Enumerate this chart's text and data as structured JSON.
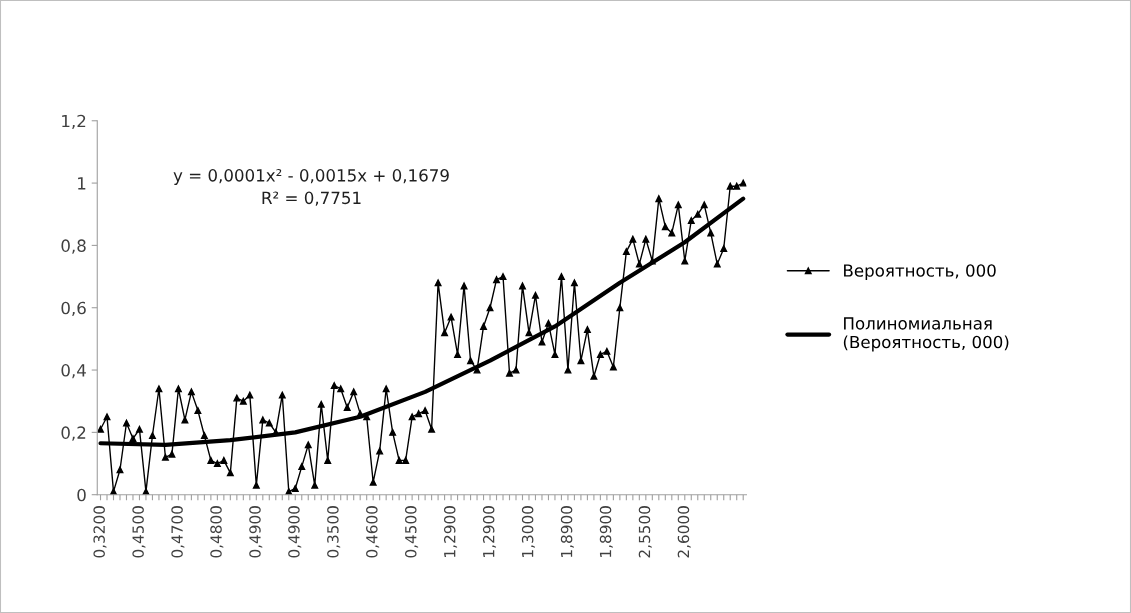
{
  "chart_data": {
    "type": "line",
    "categories": [
      "0,3200",
      null,
      null,
      null,
      null,
      null,
      "0,4500",
      null,
      null,
      null,
      null,
      null,
      "0,4700",
      null,
      null,
      null,
      null,
      null,
      "0,4800",
      null,
      null,
      null,
      null,
      null,
      "0,4900",
      null,
      null,
      null,
      null,
      null,
      "0,4900",
      null,
      null,
      null,
      null,
      null,
      "0,3500",
      null,
      null,
      null,
      null,
      null,
      "0,4600",
      null,
      null,
      null,
      null,
      null,
      "0,4500",
      null,
      null,
      null,
      null,
      null,
      "1,2900",
      null,
      null,
      null,
      null,
      null,
      "1,2900",
      null,
      null,
      null,
      null,
      null,
      "1,3000",
      null,
      null,
      null,
      null,
      null,
      "1,8900",
      null,
      null,
      null,
      null,
      null,
      "1,8900",
      null,
      null,
      null,
      null,
      null,
      "2,5500",
      null,
      null,
      null,
      null,
      null,
      "2,6000",
      null,
      null,
      null,
      null,
      null,
      null,
      null,
      null,
      null
    ],
    "series": [
      {
        "name": "Вероятность, 000",
        "color": "#000000",
        "marker": "triangle",
        "values": [
          0.21,
          0.25,
          0.01,
          0.08,
          0.23,
          0.18,
          0.21,
          0.01,
          0.19,
          0.34,
          0.12,
          0.13,
          0.34,
          0.24,
          0.33,
          0.27,
          0.19,
          0.11,
          0.1,
          0.11,
          0.07,
          0.31,
          0.3,
          0.32,
          0.03,
          0.24,
          0.23,
          0.2,
          0.32,
          0.01,
          0.02,
          0.09,
          0.16,
          0.03,
          0.29,
          0.11,
          0.35,
          0.34,
          0.28,
          0.33,
          0.26,
          0.25,
          0.04,
          0.14,
          0.34,
          0.2,
          0.11,
          0.11,
          0.25,
          0.26,
          0.27,
          0.21,
          0.68,
          0.52,
          0.57,
          0.45,
          0.67,
          0.43,
          0.4,
          0.54,
          0.6,
          0.69,
          0.7,
          0.39,
          0.4,
          0.67,
          0.52,
          0.64,
          0.49,
          0.55,
          0.45,
          0.7,
          0.4,
          0.68,
          0.43,
          0.53,
          0.38,
          0.45,
          0.46,
          0.41,
          0.6,
          0.78,
          0.82,
          0.74,
          0.82,
          0.75,
          0.95,
          0.86,
          0.84,
          0.93,
          0.75,
          0.88,
          0.9,
          0.93,
          0.84,
          0.74,
          0.79,
          0.99,
          0.99,
          1.0
        ]
      },
      {
        "name": "Полиномиальная (Вероятность, 000)",
        "color": "#000000",
        "marker": "none",
        "values": [
          0.165,
          null,
          null,
          null,
          null,
          null,
          null,
          null,
          null,
          null,
          0.16,
          null,
          null,
          null,
          null,
          null,
          null,
          null,
          null,
          null,
          0.175,
          null,
          null,
          null,
          null,
          null,
          null,
          null,
          null,
          null,
          0.2,
          null,
          null,
          null,
          null,
          null,
          null,
          null,
          null,
          null,
          0.25,
          null,
          null,
          null,
          null,
          null,
          null,
          null,
          null,
          null,
          0.33,
          null,
          null,
          null,
          null,
          null,
          null,
          null,
          null,
          null,
          0.43,
          null,
          null,
          null,
          null,
          null,
          null,
          null,
          null,
          null,
          0.54,
          null,
          null,
          null,
          null,
          null,
          null,
          null,
          null,
          null,
          0.68,
          null,
          null,
          null,
          null,
          null,
          null,
          null,
          null,
          null,
          0.81,
          null,
          null,
          null,
          null,
          null,
          null,
          null,
          null,
          0.95
        ]
      }
    ],
    "ylim": [
      0,
      1.2
    ],
    "yticks": [
      0,
      {
        "value": 0.2,
        "label": "0,2"
      },
      {
        "value": 0.4,
        "label": "0,4"
      },
      {
        "value": 0.6,
        "label": "0,6"
      },
      {
        "value": 0.8,
        "label": "0,8"
      },
      1,
      {
        "value": 1.2,
        "label": "1,2"
      }
    ],
    "annotations": [
      "y = 0,0001x² - 0,0015x + 0,1679\nR² = 0,7751"
    ],
    "legend": "right",
    "grid": false
  }
}
